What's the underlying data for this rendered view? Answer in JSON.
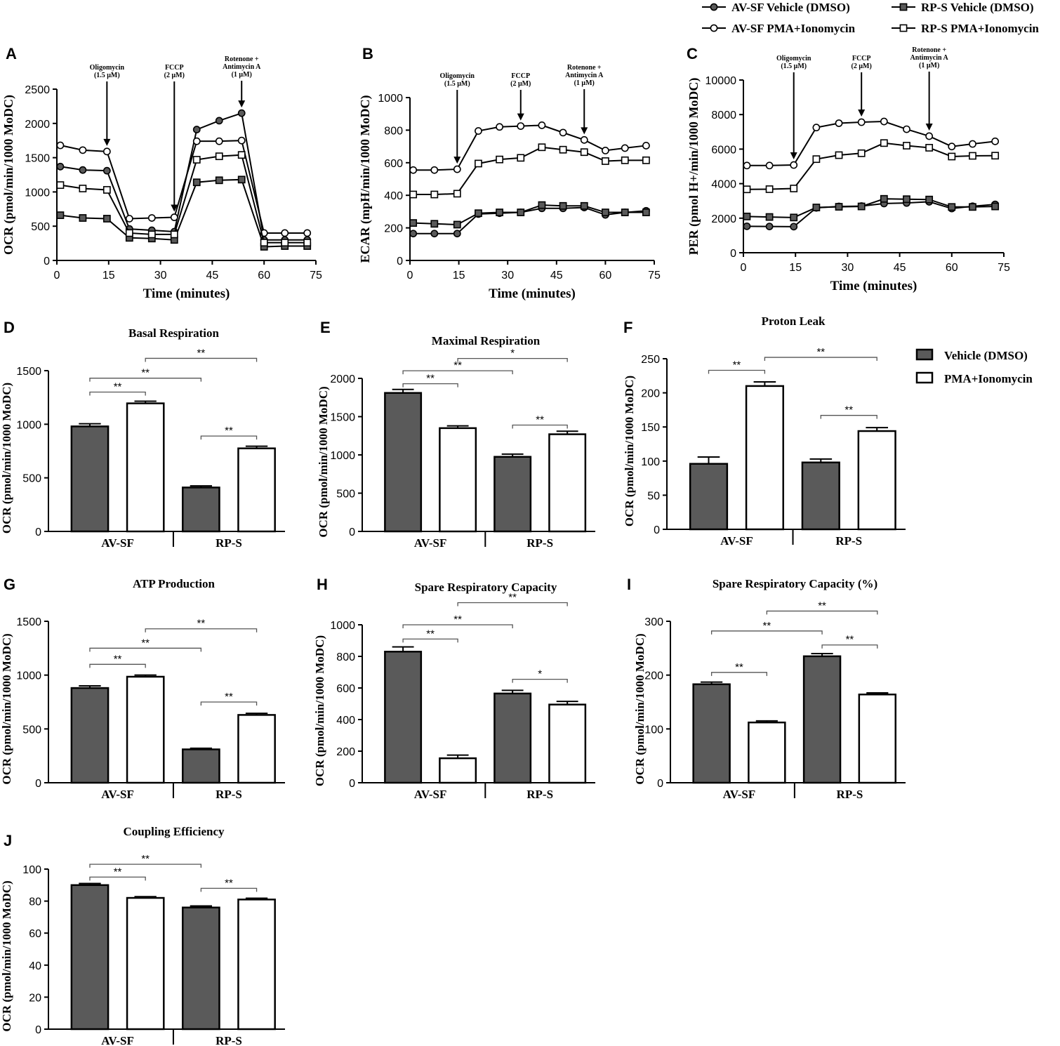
{
  "colors": {
    "vehicle_fill": "#5a5a5a",
    "pma_fill": "#ffffff",
    "stroke": "#000000",
    "bracket": "#555555"
  },
  "legend_lines": [
    {
      "label": "AV-SF  Vehicle (DMSO)",
      "marker": "circle",
      "filled": true
    },
    {
      "label": "RP-S  Vehicle (DMSO)",
      "marker": "square",
      "filled": true
    },
    {
      "label": "AV-SF  PMA+Ionomycin",
      "marker": "circle",
      "filled": false
    },
    {
      "label": "RP-S  PMA+Ionomycin",
      "marker": "square",
      "filled": false
    }
  ],
  "legend_bars": [
    {
      "label": "Vehicle (DMSO)",
      "filled": true
    },
    {
      "label": "PMA+Ionomycin",
      "filled": false
    }
  ],
  "chart_data": [
    {
      "panel": "A",
      "type": "line",
      "title": "",
      "xlabel": "Time (minutes)",
      "ylabel": "OCR (pmol/min/1000 MoDC)",
      "xlim": [
        0,
        75
      ],
      "ylim": [
        0,
        2500
      ],
      "xticks": [
        0,
        15,
        30,
        45,
        60,
        75
      ],
      "yticks": [
        0,
        500,
        1000,
        1500,
        2000,
        2500
      ],
      "x": [
        1,
        7.5,
        14.5,
        21,
        27.5,
        34,
        40.5,
        47,
        53.5,
        60,
        66,
        72.5
      ],
      "injections": [
        {
          "x": 14.5,
          "lines": [
            "Oligomycin",
            "(1.5 μM)"
          ]
        },
        {
          "x": 34,
          "lines": [
            "FCCP",
            "(2 μM)"
          ]
        },
        {
          "x": 53.5,
          "lines": [
            "Rotenone +",
            "Antimycin  A",
            "(1 μM)"
          ]
        }
      ],
      "series": [
        {
          "name": "AV-SF  Vehicle (DMSO)",
          "marker": "circle",
          "filled": true,
          "values": [
            1370,
            1320,
            1310,
            460,
            440,
            420,
            1910,
            2040,
            2150,
            300,
            300,
            300
          ]
        },
        {
          "name": "AV-SF  PMA+Ionomycin",
          "marker": "circle",
          "filled": false,
          "values": [
            1680,
            1610,
            1590,
            610,
            620,
            630,
            1740,
            1740,
            1750,
            400,
            400,
            400
          ]
        },
        {
          "name": "RP-S  Vehicle (DMSO)",
          "marker": "square",
          "filled": true,
          "values": [
            660,
            620,
            610,
            330,
            320,
            300,
            1140,
            1170,
            1180,
            200,
            210,
            210
          ]
        },
        {
          "name": "RP-S  PMA+Ionomycin",
          "marker": "square",
          "filled": false,
          "values": [
            1100,
            1050,
            1030,
            400,
            380,
            380,
            1470,
            1520,
            1540,
            260,
            260,
            260
          ]
        }
      ]
    },
    {
      "panel": "B",
      "type": "line",
      "title": "",
      "xlabel": "Time (minutes)",
      "ylabel": "ECAR  (mpH/min/1000 MoDC)",
      "xlim": [
        0,
        75
      ],
      "ylim": [
        0,
        1000
      ],
      "xticks": [
        0,
        15,
        30,
        45,
        60,
        75
      ],
      "yticks": [
        0,
        200,
        400,
        600,
        800,
        1000
      ],
      "x": [
        1,
        7.5,
        14.5,
        21,
        27.5,
        34,
        40.5,
        47,
        53.5,
        60,
        66,
        72.5
      ],
      "injections": [
        {
          "x": 14.5,
          "lines": [
            "Oligomycin",
            "(1.5 μM)"
          ]
        },
        {
          "x": 34,
          "lines": [
            "FCCP",
            "(2 μM)"
          ]
        },
        {
          "x": 53.5,
          "lines": [
            "Rotenone +",
            "Antimycin  A",
            "(1 μM)"
          ]
        }
      ],
      "series": [
        {
          "name": "AV-SF  Vehicle (DMSO)",
          "marker": "circle",
          "filled": true,
          "values": [
            165,
            165,
            165,
            285,
            290,
            295,
            320,
            320,
            325,
            280,
            295,
            305
          ]
        },
        {
          "name": "AV-SF  PMA+Ionomycin",
          "marker": "circle",
          "filled": false,
          "values": [
            555,
            555,
            560,
            795,
            820,
            825,
            830,
            785,
            740,
            675,
            690,
            705
          ]
        },
        {
          "name": "RP-S  Vehicle (DMSO)",
          "marker": "square",
          "filled": true,
          "values": [
            230,
            225,
            220,
            290,
            295,
            295,
            340,
            335,
            335,
            295,
            295,
            295
          ]
        },
        {
          "name": "RP-S  PMA+Ionomycin",
          "marker": "square",
          "filled": false,
          "values": [
            405,
            405,
            410,
            595,
            620,
            630,
            695,
            680,
            665,
            610,
            615,
            615
          ]
        }
      ]
    },
    {
      "panel": "C",
      "type": "line",
      "title": "",
      "xlabel": "Time (minutes)",
      "ylabel": "PER (pmol H+/min/1000  MoDC)",
      "xlim": [
        0,
        75
      ],
      "ylim": [
        0,
        10000
      ],
      "xticks": [
        0,
        15,
        30,
        45,
        60,
        75
      ],
      "yticks": [
        0,
        2000,
        4000,
        6000,
        8000,
        10000
      ],
      "x": [
        1,
        7.5,
        14.5,
        21,
        27.5,
        34,
        40.5,
        47,
        53.5,
        60,
        66,
        72.5
      ],
      "injections": [
        {
          "x": 14.5,
          "lines": [
            "Oligomycin",
            "(1.5 μM)"
          ]
        },
        {
          "x": 34,
          "lines": [
            "FCCP",
            "(2 μM)"
          ]
        },
        {
          "x": 53.5,
          "lines": [
            "Rotenone +",
            "Antimycin  A",
            "(1 μM)"
          ]
        }
      ],
      "series": [
        {
          "name": "AV-SF  Vehicle (DMSO)",
          "marker": "circle",
          "filled": true,
          "values": [
            1530,
            1520,
            1510,
            2600,
            2680,
            2700,
            2850,
            2880,
            2950,
            2560,
            2690,
            2800
          ]
        },
        {
          "name": "AV-SF  PMA+Ionomycin",
          "marker": "circle",
          "filled": false,
          "values": [
            5050,
            5050,
            5080,
            7250,
            7500,
            7560,
            7600,
            7150,
            6750,
            6150,
            6300,
            6450
          ]
        },
        {
          "name": "RP-S  Vehicle (DMSO)",
          "marker": "square",
          "filled": true,
          "values": [
            2100,
            2070,
            2040,
            2620,
            2660,
            2680,
            3120,
            3100,
            3080,
            2650,
            2650,
            2680
          ]
        },
        {
          "name": "RP-S  PMA+Ionomycin",
          "marker": "square",
          "filled": false,
          "values": [
            3670,
            3680,
            3720,
            5420,
            5650,
            5760,
            6350,
            6200,
            6080,
            5570,
            5610,
            5620
          ]
        }
      ]
    },
    {
      "panel": "D",
      "type": "bar",
      "title": "Basal Respiration",
      "ylabel": "OCR (pmol/min/1000 MoDC)",
      "ylim": [
        0,
        1500
      ],
      "yticks": [
        0,
        500,
        1000,
        1500
      ],
      "groups": [
        "AV-SF",
        "RP-S"
      ],
      "series": [
        {
          "name": "Vehicle (DMSO)",
          "values": [
            980,
            410
          ],
          "errors": [
            25,
            15
          ]
        },
        {
          "name": "PMA+Ionomycin",
          "values": [
            1195,
            775
          ],
          "errors": [
            20,
            20
          ]
        }
      ],
      "brackets": [
        {
          "from": 0,
          "to": 1,
          "y": 1300,
          "label": "**"
        },
        {
          "from": 0,
          "to": 2,
          "y": 1430,
          "label": "**"
        },
        {
          "from": 1,
          "to": 3,
          "y": 1615,
          "label": "**"
        },
        {
          "from": 2,
          "to": 3,
          "y": 890,
          "label": "**"
        }
      ]
    },
    {
      "panel": "E",
      "type": "bar",
      "title": "Maximal Respiration",
      "ylabel": "OCR (pmol/min/1000 MoDC)",
      "ylim": [
        0,
        2000
      ],
      "yticks": [
        0,
        500,
        1000,
        1500,
        2000
      ],
      "groups": [
        "AV-SF",
        "RP-S"
      ],
      "series": [
        {
          "name": "Vehicle (DMSO)",
          "values": [
            1810,
            975
          ],
          "errors": [
            45,
            35
          ]
        },
        {
          "name": "PMA+Ionomycin",
          "values": [
            1350,
            1270
          ],
          "errors": [
            30,
            40
          ]
        }
      ],
      "brackets": [
        {
          "from": 0,
          "to": 1,
          "y": 1930,
          "label": "**"
        },
        {
          "from": 0,
          "to": 2,
          "y": 2100,
          "label": "**"
        },
        {
          "from": 1,
          "to": 3,
          "y": 2260,
          "label": "*"
        },
        {
          "from": 2,
          "to": 3,
          "y": 1390,
          "label": "**"
        }
      ]
    },
    {
      "panel": "F",
      "type": "bar",
      "title": "Proton Leak",
      "ylabel": "OCR (pmol/min/1000 MoDC)",
      "ylim": [
        0,
        250
      ],
      "yticks": [
        0,
        50,
        100,
        150,
        200,
        250
      ],
      "groups": [
        "AV-SF",
        "RP-S"
      ],
      "series": [
        {
          "name": "Vehicle (DMSO)",
          "values": [
            96,
            98
          ],
          "errors": [
            10,
            5
          ]
        },
        {
          "name": "PMA+Ionomycin",
          "values": [
            210,
            144
          ],
          "errors": [
            6,
            5
          ]
        }
      ],
      "brackets": [
        {
          "from": 0,
          "to": 1,
          "y": 233,
          "label": "**"
        },
        {
          "from": 1,
          "to": 3,
          "y": 252,
          "label": "**"
        },
        {
          "from": 2,
          "to": 3,
          "y": 167,
          "label": "**"
        }
      ]
    },
    {
      "panel": "G",
      "type": "bar",
      "title": "ATP Production",
      "ylabel": "OCR (pmol/min/1000 MoDC)",
      "ylim": [
        0,
        1500
      ],
      "yticks": [
        0,
        500,
        1000,
        1500
      ],
      "groups": [
        "AV-SF",
        "RP-S"
      ],
      "series": [
        {
          "name": "Vehicle (DMSO)",
          "values": [
            880,
            310
          ],
          "errors": [
            20,
            10
          ]
        },
        {
          "name": "PMA+Ionomycin",
          "values": [
            985,
            630
          ],
          "errors": [
            15,
            15
          ]
        }
      ],
      "brackets": [
        {
          "from": 0,
          "to": 1,
          "y": 1100,
          "label": "**"
        },
        {
          "from": 0,
          "to": 2,
          "y": 1250,
          "label": "**"
        },
        {
          "from": 1,
          "to": 3,
          "y": 1430,
          "label": "**"
        },
        {
          "from": 2,
          "to": 3,
          "y": 750,
          "label": "**"
        }
      ]
    },
    {
      "panel": "H",
      "type": "bar",
      "title": "Spare Respiratory Capacity",
      "ylabel": "OCR (pmol/min/1000 MoDC)",
      "ylim": [
        0,
        1000
      ],
      "yticks": [
        0,
        200,
        400,
        600,
        800,
        1000
      ],
      "groups": [
        "AV-SF",
        "RP-S"
      ],
      "series": [
        {
          "name": "Vehicle (DMSO)",
          "values": [
            830,
            565
          ],
          "errors": [
            30,
            20
          ]
        },
        {
          "name": "PMA+Ionomycin",
          "values": [
            155,
            495
          ],
          "errors": [
            20,
            20
          ]
        }
      ],
      "brackets": [
        {
          "from": 0,
          "to": 1,
          "y": 910,
          "label": "**"
        },
        {
          "from": 0,
          "to": 2,
          "y": 1000,
          "label": "**"
        },
        {
          "from": 1,
          "to": 3,
          "y": 1140,
          "label": "**"
        },
        {
          "from": 2,
          "to": 3,
          "y": 655,
          "label": "*"
        }
      ]
    },
    {
      "panel": "I",
      "type": "bar",
      "title": "Spare Respiratory Capacity (%)",
      "ylabel": "OCR (pmol/min/1000 MoDC)",
      "ylim": [
        0,
        300
      ],
      "yticks": [
        0,
        100,
        200,
        300
      ],
      "groups": [
        "AV-SF",
        "RP-S"
      ],
      "series": [
        {
          "name": "Vehicle (DMSO)",
          "values": [
            183,
            235
          ],
          "errors": [
            4,
            5
          ]
        },
        {
          "name": "PMA+Ionomycin",
          "values": [
            112,
            164
          ],
          "errors": [
            3,
            3
          ]
        }
      ],
      "brackets": [
        {
          "from": 0,
          "to": 1,
          "y": 205,
          "label": "**"
        },
        {
          "from": 0,
          "to": 2,
          "y": 282,
          "label": "**"
        },
        {
          "from": 1,
          "to": 3,
          "y": 319,
          "label": "**"
        },
        {
          "from": 2,
          "to": 3,
          "y": 256,
          "label": "**"
        }
      ]
    },
    {
      "panel": "J",
      "type": "bar",
      "title": "Coupling Efficiency",
      "ylabel": "OCR (pmol/min/1000 MoDC)",
      "ylim": [
        0,
        100
      ],
      "yticks": [
        0,
        20,
        40,
        60,
        80,
        100
      ],
      "groups": [
        "AV-SF",
        "RP-S"
      ],
      "series": [
        {
          "name": "Vehicle (DMSO)",
          "values": [
            90,
            76
          ],
          "errors": [
            1,
            1
          ]
        },
        {
          "name": "PMA+Ionomycin",
          "values": [
            82,
            81
          ],
          "errors": [
            0.8,
            0.8
          ]
        }
      ],
      "brackets": [
        {
          "from": 0,
          "to": 1,
          "y": 95,
          "label": "**"
        },
        {
          "from": 0,
          "to": 2,
          "y": 103,
          "label": "**"
        },
        {
          "from": 2,
          "to": 3,
          "y": 88,
          "label": "**"
        }
      ]
    }
  ]
}
